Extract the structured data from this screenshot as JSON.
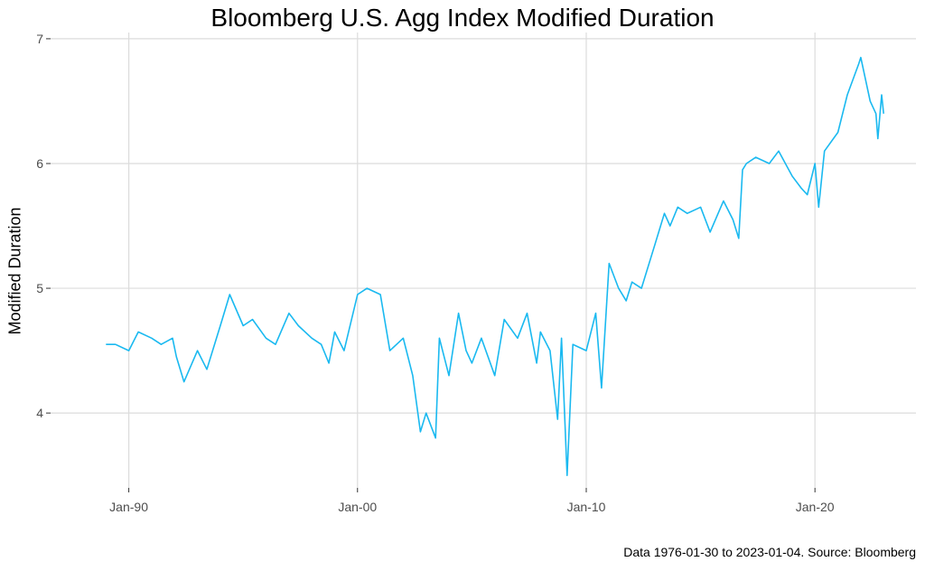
{
  "chart_data": {
    "type": "line",
    "title": "Bloomberg U.S. Agg Index Modified Duration",
    "xlabel": "",
    "ylabel": "Modified Duration",
    "caption": "Data 1976-01-30 to 2023-01-04.  Source: Bloomberg",
    "ylim": [
      3.4,
      7.05
    ],
    "xlim": [
      "1986-08-01",
      "2024-06-01"
    ],
    "y_ticks": [
      4,
      5,
      6,
      7
    ],
    "x_ticks": [
      {
        "date": "1990-01-01",
        "label": "Jan-90"
      },
      {
        "date": "2000-01-01",
        "label": "Jan-00"
      },
      {
        "date": "2010-01-01",
        "label": "Jan-10"
      },
      {
        "date": "2020-01-01",
        "label": "Jan-20"
      }
    ],
    "grid": true,
    "line_color": "#1ab9f0",
    "series": [
      {
        "x": [
          "1989-01",
          "1989-06",
          "1990-01",
          "1990-06",
          "1991-01",
          "1991-06",
          "1991-12",
          "1992-02",
          "1992-06",
          "1993-01",
          "1993-06",
          "1994-01",
          "1994-06",
          "1995-01",
          "1995-06",
          "1996-01",
          "1996-06",
          "1997-01",
          "1997-06",
          "1998-01",
          "1998-06",
          "1998-10",
          "1999-01",
          "1999-06",
          "2000-01",
          "2000-06",
          "2001-01",
          "2001-06",
          "2002-01",
          "2002-06",
          "2002-10",
          "2003-01",
          "2003-06",
          "2003-08",
          "2004-01",
          "2004-06",
          "2004-10",
          "2005-01",
          "2005-06",
          "2006-01",
          "2006-06",
          "2007-01",
          "2007-06",
          "2007-11",
          "2008-01",
          "2008-06",
          "2008-10",
          "2008-12",
          "2009-03",
          "2009-06",
          "2010-01",
          "2010-06",
          "2010-09",
          "2011-01",
          "2011-06",
          "2011-10",
          "2012-01",
          "2012-06",
          "2013-01",
          "2013-06",
          "2013-09",
          "2014-01",
          "2014-06",
          "2015-01",
          "2015-06",
          "2016-01",
          "2016-06",
          "2016-09",
          "2016-11",
          "2017-01",
          "2017-06",
          "2018-01",
          "2018-06",
          "2019-01",
          "2019-06",
          "2019-09",
          "2020-01",
          "2020-03",
          "2020-06",
          "2021-01",
          "2021-06",
          "2021-12",
          "2022-01",
          "2022-06",
          "2022-09",
          "2022-10",
          "2022-12",
          "2023-01"
        ],
        "y": [
          4.55,
          4.55,
          4.5,
          4.65,
          4.6,
          4.55,
          4.6,
          4.45,
          4.25,
          4.5,
          4.35,
          4.7,
          4.95,
          4.7,
          4.75,
          4.6,
          4.55,
          4.8,
          4.7,
          4.6,
          4.55,
          4.4,
          4.65,
          4.5,
          4.95,
          5.0,
          4.95,
          4.5,
          4.6,
          4.3,
          3.85,
          4.0,
          3.8,
          4.6,
          4.3,
          4.8,
          4.5,
          4.4,
          4.6,
          4.3,
          4.75,
          4.6,
          4.8,
          4.4,
          4.65,
          4.5,
          3.95,
          4.6,
          3.5,
          4.55,
          4.5,
          4.8,
          4.2,
          5.2,
          5.0,
          4.9,
          5.05,
          5.0,
          5.35,
          5.6,
          5.5,
          5.65,
          5.6,
          5.65,
          5.45,
          5.7,
          5.55,
          5.4,
          5.95,
          6.0,
          6.05,
          6.0,
          6.1,
          5.9,
          5.8,
          5.75,
          6.0,
          5.65,
          6.1,
          6.25,
          6.55,
          6.8,
          6.85,
          6.5,
          6.4,
          6.2,
          6.55,
          6.4
        ]
      }
    ]
  }
}
